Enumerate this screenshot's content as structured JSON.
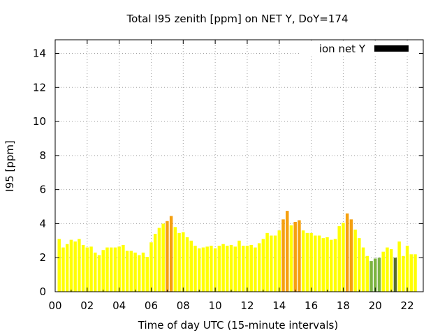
{
  "chart_data": {
    "type": "bar",
    "title": "Total I95 zenith [ppm] on NET Y, DoY=174",
    "xlabel": "Time of day UTC (15-minute intervals)",
    "ylabel": "I95 [ppm]",
    "xlim": [
      0,
      23
    ],
    "ylim": [
      0,
      14.8
    ],
    "x_tick_labels": [
      "00",
      "02",
      "04",
      "06",
      "08",
      "10",
      "12",
      "14",
      "16",
      "18",
      "20",
      "22"
    ],
    "x_tick_values": [
      0,
      2,
      4,
      6,
      8,
      10,
      12,
      14,
      16,
      18,
      20,
      22
    ],
    "y_ticks": [
      0,
      2,
      4,
      6,
      8,
      10,
      12,
      14
    ],
    "grid": true,
    "legend": {
      "label": "ion net Y",
      "color": "#000000",
      "placement": "top-right"
    },
    "colors": {
      "low": "#7cb342",
      "normal": "#ffff00",
      "elevated": "#f5a00f",
      "gap": "#556b2f"
    },
    "interval_hours": 0.25,
    "series": [
      {
        "x": 0.25,
        "value": 3.1,
        "level": "normal"
      },
      {
        "x": 0.5,
        "value": 2.6,
        "level": "normal"
      },
      {
        "x": 0.75,
        "value": 2.8,
        "level": "normal"
      },
      {
        "x": 1.0,
        "value": 3.05,
        "level": "normal"
      },
      {
        "x": 1.25,
        "value": 2.95,
        "level": "normal"
      },
      {
        "x": 1.5,
        "value": 3.1,
        "level": "normal"
      },
      {
        "x": 1.75,
        "value": 2.75,
        "level": "normal"
      },
      {
        "x": 2.0,
        "value": 2.6,
        "level": "normal"
      },
      {
        "x": 2.25,
        "value": 2.65,
        "level": "normal"
      },
      {
        "x": 2.5,
        "value": 2.3,
        "level": "normal"
      },
      {
        "x": 2.75,
        "value": 2.15,
        "level": "normal"
      },
      {
        "x": 3.0,
        "value": 2.45,
        "level": "normal"
      },
      {
        "x": 3.25,
        "value": 2.6,
        "level": "normal"
      },
      {
        "x": 3.5,
        "value": 2.6,
        "level": "normal"
      },
      {
        "x": 3.75,
        "value": 2.6,
        "level": "normal"
      },
      {
        "x": 4.0,
        "value": 2.65,
        "level": "normal"
      },
      {
        "x": 4.25,
        "value": 2.75,
        "level": "normal"
      },
      {
        "x": 4.5,
        "value": 2.4,
        "level": "normal"
      },
      {
        "x": 4.75,
        "value": 2.4,
        "level": "normal"
      },
      {
        "x": 5.0,
        "value": 2.3,
        "level": "normal"
      },
      {
        "x": 5.25,
        "value": 2.15,
        "level": "normal"
      },
      {
        "x": 5.5,
        "value": 2.3,
        "level": "normal"
      },
      {
        "x": 5.75,
        "value": 2.05,
        "level": "normal"
      },
      {
        "x": 6.0,
        "value": 2.9,
        "level": "normal"
      },
      {
        "x": 6.25,
        "value": 3.4,
        "level": "normal"
      },
      {
        "x": 6.5,
        "value": 3.75,
        "level": "normal"
      },
      {
        "x": 6.75,
        "value": 4.0,
        "level": "normal"
      },
      {
        "x": 7.0,
        "value": 4.15,
        "level": "elevated"
      },
      {
        "x": 7.25,
        "value": 4.45,
        "level": "elevated"
      },
      {
        "x": 7.5,
        "value": 3.8,
        "level": "normal"
      },
      {
        "x": 7.75,
        "value": 3.45,
        "level": "normal"
      },
      {
        "x": 8.0,
        "value": 3.5,
        "level": "normal"
      },
      {
        "x": 8.25,
        "value": 3.2,
        "level": "normal"
      },
      {
        "x": 8.5,
        "value": 3.0,
        "level": "normal"
      },
      {
        "x": 8.75,
        "value": 2.7,
        "level": "normal"
      },
      {
        "x": 9.0,
        "value": 2.55,
        "level": "normal"
      },
      {
        "x": 9.25,
        "value": 2.6,
        "level": "normal"
      },
      {
        "x": 9.5,
        "value": 2.65,
        "level": "normal"
      },
      {
        "x": 9.75,
        "value": 2.7,
        "level": "normal"
      },
      {
        "x": 10.0,
        "value": 2.55,
        "level": "normal"
      },
      {
        "x": 10.25,
        "value": 2.7,
        "level": "normal"
      },
      {
        "x": 10.5,
        "value": 2.8,
        "level": "normal"
      },
      {
        "x": 10.75,
        "value": 2.7,
        "level": "normal"
      },
      {
        "x": 11.0,
        "value": 2.75,
        "level": "normal"
      },
      {
        "x": 11.25,
        "value": 2.65,
        "level": "normal"
      },
      {
        "x": 11.5,
        "value": 3.0,
        "level": "normal"
      },
      {
        "x": 11.75,
        "value": 2.7,
        "level": "normal"
      },
      {
        "x": 12.0,
        "value": 2.7,
        "level": "normal"
      },
      {
        "x": 12.25,
        "value": 2.75,
        "level": "normal"
      },
      {
        "x": 12.5,
        "value": 2.6,
        "level": "normal"
      },
      {
        "x": 12.75,
        "value": 2.85,
        "level": "normal"
      },
      {
        "x": 13.0,
        "value": 3.1,
        "level": "normal"
      },
      {
        "x": 13.25,
        "value": 3.45,
        "level": "normal"
      },
      {
        "x": 13.5,
        "value": 3.3,
        "level": "normal"
      },
      {
        "x": 13.75,
        "value": 3.3,
        "level": "normal"
      },
      {
        "x": 14.0,
        "value": 3.6,
        "level": "normal"
      },
      {
        "x": 14.25,
        "value": 4.25,
        "level": "elevated"
      },
      {
        "x": 14.5,
        "value": 4.75,
        "level": "elevated"
      },
      {
        "x": 14.75,
        "value": 3.9,
        "level": "normal"
      },
      {
        "x": 15.0,
        "value": 4.1,
        "level": "elevated"
      },
      {
        "x": 15.25,
        "value": 4.2,
        "level": "elevated"
      },
      {
        "x": 15.5,
        "value": 3.6,
        "level": "normal"
      },
      {
        "x": 15.75,
        "value": 3.45,
        "level": "normal"
      },
      {
        "x": 16.0,
        "value": 3.45,
        "level": "normal"
      },
      {
        "x": 16.25,
        "value": 3.3,
        "level": "normal"
      },
      {
        "x": 16.5,
        "value": 3.3,
        "level": "normal"
      },
      {
        "x": 16.75,
        "value": 3.15,
        "level": "normal"
      },
      {
        "x": 17.0,
        "value": 3.2,
        "level": "normal"
      },
      {
        "x": 17.25,
        "value": 3.05,
        "level": "normal"
      },
      {
        "x": 17.5,
        "value": 3.1,
        "level": "normal"
      },
      {
        "x": 17.75,
        "value": 3.85,
        "level": "normal"
      },
      {
        "x": 18.0,
        "value": 4.05,
        "level": "normal"
      },
      {
        "x": 18.25,
        "value": 4.6,
        "level": "elevated"
      },
      {
        "x": 18.5,
        "value": 4.25,
        "level": "elevated"
      },
      {
        "x": 18.75,
        "value": 3.65,
        "level": "normal"
      },
      {
        "x": 19.0,
        "value": 3.15,
        "level": "normal"
      },
      {
        "x": 19.25,
        "value": 2.6,
        "level": "normal"
      },
      {
        "x": 19.5,
        "value": 2.1,
        "level": "normal"
      },
      {
        "x": 19.75,
        "value": 1.8,
        "level": "low"
      },
      {
        "x": 20.0,
        "value": 1.95,
        "level": "low"
      },
      {
        "x": 20.25,
        "value": 2.0,
        "level": "low"
      },
      {
        "x": 20.5,
        "value": 2.35,
        "level": "normal"
      },
      {
        "x": 20.75,
        "value": 2.6,
        "level": "normal"
      },
      {
        "x": 21.0,
        "value": 2.5,
        "level": "normal"
      },
      {
        "x": 21.25,
        "value": 2.0,
        "level": "gap"
      },
      {
        "x": 21.5,
        "value": 2.95,
        "level": "normal"
      },
      {
        "x": 21.75,
        "value": 2.1,
        "level": "normal"
      },
      {
        "x": 22.0,
        "value": 2.7,
        "level": "normal"
      },
      {
        "x": 22.25,
        "value": 2.2,
        "level": "normal"
      },
      {
        "x": 22.5,
        "value": 2.2,
        "level": "normal"
      }
    ]
  }
}
